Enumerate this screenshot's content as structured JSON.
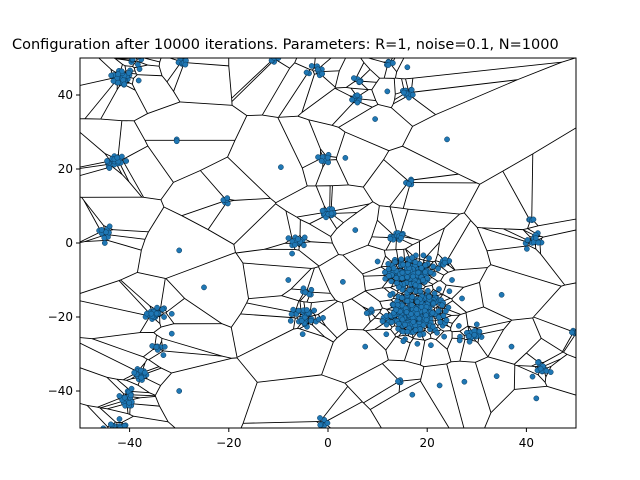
{
  "chart_data": {
    "type": "scatter",
    "title": "Configuration after 10000 iterations. Parameters: R=1, noise=0.1, N=1000",
    "xlabel": "",
    "ylabel": "",
    "xlim": [
      -50,
      50
    ],
    "ylim": [
      -50,
      50
    ],
    "xticks": [
      -40,
      -20,
      0,
      20,
      40
    ],
    "yticks": [
      -40,
      -20,
      0,
      20,
      40
    ],
    "grid": false,
    "overlay": "voronoi-tessellation",
    "colors": {
      "points": "#1f77b4",
      "edges": "#000000"
    },
    "clusters": [
      {
        "x": -41.5,
        "y": 44.8,
        "n": 40,
        "spread": 1.2
      },
      {
        "x": -38.5,
        "y": 49.5,
        "n": 12,
        "spread": 0.8
      },
      {
        "x": -29.0,
        "y": 48.8,
        "n": 8,
        "spread": 0.6
      },
      {
        "x": -11.0,
        "y": 49.8,
        "n": 5,
        "spread": 0.5
      },
      {
        "x": -2.5,
        "y": 46.5,
        "n": 10,
        "spread": 1.0
      },
      {
        "x": 5.5,
        "y": 39.0,
        "n": 8,
        "spread": 0.6
      },
      {
        "x": 6.5,
        "y": 44.0,
        "n": 6,
        "spread": 0.5
      },
      {
        "x": 12.0,
        "y": 48.5,
        "n": 6,
        "spread": 0.6
      },
      {
        "x": 16.0,
        "y": 40.5,
        "n": 14,
        "spread": 1.0
      },
      {
        "x": -43.0,
        "y": 22.0,
        "n": 22,
        "spread": 1.0
      },
      {
        "x": -20.5,
        "y": 11.5,
        "n": 8,
        "spread": 0.6
      },
      {
        "x": -0.5,
        "y": 23.0,
        "n": 8,
        "spread": 0.7
      },
      {
        "x": 16.5,
        "y": 16.5,
        "n": 6,
        "spread": 0.5
      },
      {
        "x": 0.0,
        "y": 8.0,
        "n": 16,
        "spread": 0.8
      },
      {
        "x": -44.5,
        "y": 3.0,
        "n": 10,
        "spread": 1.0
      },
      {
        "x": -6.0,
        "y": 0.5,
        "n": 16,
        "spread": 0.8
      },
      {
        "x": 13.8,
        "y": 1.5,
        "n": 16,
        "spread": 0.8
      },
      {
        "x": 41.5,
        "y": 0.5,
        "n": 14,
        "spread": 0.9
      },
      {
        "x": 41.0,
        "y": 6.5,
        "n": 4,
        "spread": 0.4
      },
      {
        "x": 16.5,
        "y": -8.0,
        "n": 130,
        "spread": 2.0
      },
      {
        "x": 23.5,
        "y": -5.5,
        "n": 10,
        "spread": 0.8
      },
      {
        "x": 18.0,
        "y": -19.0,
        "n": 230,
        "spread": 3.0
      },
      {
        "x": -34.5,
        "y": -19.0,
        "n": 22,
        "spread": 1.0
      },
      {
        "x": -4.5,
        "y": -20.0,
        "n": 30,
        "spread": 1.2
      },
      {
        "x": -4.0,
        "y": -13.0,
        "n": 6,
        "spread": 0.5
      },
      {
        "x": 8.5,
        "y": -18.5,
        "n": 6,
        "spread": 0.5
      },
      {
        "x": 28.5,
        "y": -25.5,
        "n": 18,
        "spread": 1.0
      },
      {
        "x": 49.5,
        "y": -24.5,
        "n": 8,
        "spread": 0.6
      },
      {
        "x": -34.0,
        "y": -28.5,
        "n": 8,
        "spread": 0.6
      },
      {
        "x": -38.0,
        "y": -35.5,
        "n": 18,
        "spread": 1.0
      },
      {
        "x": -40.5,
        "y": -42.0,
        "n": 18,
        "spread": 1.2
      },
      {
        "x": 43.0,
        "y": -34.0,
        "n": 14,
        "spread": 1.0
      },
      {
        "x": 14.5,
        "y": -37.5,
        "n": 4,
        "spread": 0.4
      },
      {
        "x": -42.5,
        "y": -49.5,
        "n": 14,
        "spread": 1.2
      },
      {
        "x": -1.0,
        "y": -48.5,
        "n": 6,
        "spread": 0.6
      }
    ],
    "points": [
      [
        -10,
        50
      ],
      [
        -30.5,
        28
      ],
      [
        -30.5,
        27.5
      ],
      [
        9.5,
        33.5
      ],
      [
        24,
        28
      ],
      [
        -9.5,
        20.5
      ],
      [
        5.5,
        3.5
      ],
      [
        -30,
        -2
      ],
      [
        -25,
        -12
      ],
      [
        3,
        -10.5
      ],
      [
        -31.5,
        -24.5
      ],
      [
        -30,
        -40
      ],
      [
        7.5,
        -28
      ],
      [
        17,
        -41
      ],
      [
        22.5,
        -38.5
      ],
      [
        27.5,
        -37.5
      ],
      [
        34,
        -36
      ],
      [
        42,
        -42
      ],
      [
        -45,
        0
      ],
      [
        -38,
        47
      ],
      [
        16,
        47.5
      ],
      [
        3.5,
        23
      ],
      [
        37,
        -28
      ],
      [
        -8,
        -10
      ],
      [
        10,
        -5
      ],
      [
        25,
        -10
      ],
      [
        30,
        -22
      ],
      [
        35,
        -14
      ]
    ]
  }
}
